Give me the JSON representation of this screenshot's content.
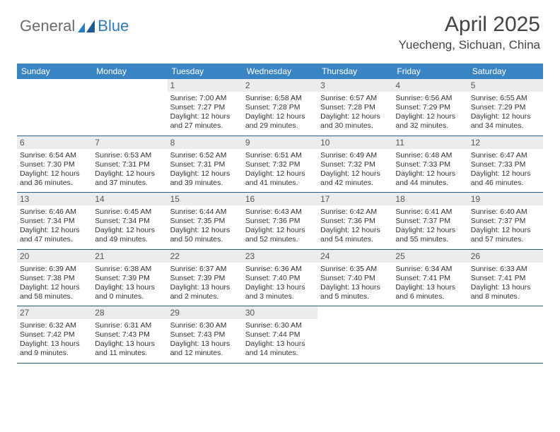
{
  "logo": {
    "text1": "General",
    "text2": "Blue"
  },
  "title": "April 2025",
  "location": "Yuecheng, Sichuan, China",
  "colors": {
    "header_bg": "#3a84c4",
    "header_text": "#ffffff",
    "daynum_bg": "#ececec",
    "week_divider": "#2b5a84",
    "body_text": "#333333",
    "title_text": "#444444"
  },
  "dayHeaders": [
    "Sunday",
    "Monday",
    "Tuesday",
    "Wednesday",
    "Thursday",
    "Friday",
    "Saturday"
  ],
  "weeks": [
    [
      {
        "date": "",
        "sunrise": "",
        "sunset": "",
        "daylight": ""
      },
      {
        "date": "",
        "sunrise": "",
        "sunset": "",
        "daylight": ""
      },
      {
        "date": "1",
        "sunrise": "Sunrise: 7:00 AM",
        "sunset": "Sunset: 7:27 PM",
        "daylight": "Daylight: 12 hours and 27 minutes."
      },
      {
        "date": "2",
        "sunrise": "Sunrise: 6:58 AM",
        "sunset": "Sunset: 7:28 PM",
        "daylight": "Daylight: 12 hours and 29 minutes."
      },
      {
        "date": "3",
        "sunrise": "Sunrise: 6:57 AM",
        "sunset": "Sunset: 7:28 PM",
        "daylight": "Daylight: 12 hours and 30 minutes."
      },
      {
        "date": "4",
        "sunrise": "Sunrise: 6:56 AM",
        "sunset": "Sunset: 7:29 PM",
        "daylight": "Daylight: 12 hours and 32 minutes."
      },
      {
        "date": "5",
        "sunrise": "Sunrise: 6:55 AM",
        "sunset": "Sunset: 7:29 PM",
        "daylight": "Daylight: 12 hours and 34 minutes."
      }
    ],
    [
      {
        "date": "6",
        "sunrise": "Sunrise: 6:54 AM",
        "sunset": "Sunset: 7:30 PM",
        "daylight": "Daylight: 12 hours and 36 minutes."
      },
      {
        "date": "7",
        "sunrise": "Sunrise: 6:53 AM",
        "sunset": "Sunset: 7:31 PM",
        "daylight": "Daylight: 12 hours and 37 minutes."
      },
      {
        "date": "8",
        "sunrise": "Sunrise: 6:52 AM",
        "sunset": "Sunset: 7:31 PM",
        "daylight": "Daylight: 12 hours and 39 minutes."
      },
      {
        "date": "9",
        "sunrise": "Sunrise: 6:51 AM",
        "sunset": "Sunset: 7:32 PM",
        "daylight": "Daylight: 12 hours and 41 minutes."
      },
      {
        "date": "10",
        "sunrise": "Sunrise: 6:49 AM",
        "sunset": "Sunset: 7:32 PM",
        "daylight": "Daylight: 12 hours and 42 minutes."
      },
      {
        "date": "11",
        "sunrise": "Sunrise: 6:48 AM",
        "sunset": "Sunset: 7:33 PM",
        "daylight": "Daylight: 12 hours and 44 minutes."
      },
      {
        "date": "12",
        "sunrise": "Sunrise: 6:47 AM",
        "sunset": "Sunset: 7:33 PM",
        "daylight": "Daylight: 12 hours and 46 minutes."
      }
    ],
    [
      {
        "date": "13",
        "sunrise": "Sunrise: 6:46 AM",
        "sunset": "Sunset: 7:34 PM",
        "daylight": "Daylight: 12 hours and 47 minutes."
      },
      {
        "date": "14",
        "sunrise": "Sunrise: 6:45 AM",
        "sunset": "Sunset: 7:34 PM",
        "daylight": "Daylight: 12 hours and 49 minutes."
      },
      {
        "date": "15",
        "sunrise": "Sunrise: 6:44 AM",
        "sunset": "Sunset: 7:35 PM",
        "daylight": "Daylight: 12 hours and 50 minutes."
      },
      {
        "date": "16",
        "sunrise": "Sunrise: 6:43 AM",
        "sunset": "Sunset: 7:36 PM",
        "daylight": "Daylight: 12 hours and 52 minutes."
      },
      {
        "date": "17",
        "sunrise": "Sunrise: 6:42 AM",
        "sunset": "Sunset: 7:36 PM",
        "daylight": "Daylight: 12 hours and 54 minutes."
      },
      {
        "date": "18",
        "sunrise": "Sunrise: 6:41 AM",
        "sunset": "Sunset: 7:37 PM",
        "daylight": "Daylight: 12 hours and 55 minutes."
      },
      {
        "date": "19",
        "sunrise": "Sunrise: 6:40 AM",
        "sunset": "Sunset: 7:37 PM",
        "daylight": "Daylight: 12 hours and 57 minutes."
      }
    ],
    [
      {
        "date": "20",
        "sunrise": "Sunrise: 6:39 AM",
        "sunset": "Sunset: 7:38 PM",
        "daylight": "Daylight: 12 hours and 58 minutes."
      },
      {
        "date": "21",
        "sunrise": "Sunrise: 6:38 AM",
        "sunset": "Sunset: 7:39 PM",
        "daylight": "Daylight: 13 hours and 0 minutes."
      },
      {
        "date": "22",
        "sunrise": "Sunrise: 6:37 AM",
        "sunset": "Sunset: 7:39 PM",
        "daylight": "Daylight: 13 hours and 2 minutes."
      },
      {
        "date": "23",
        "sunrise": "Sunrise: 6:36 AM",
        "sunset": "Sunset: 7:40 PM",
        "daylight": "Daylight: 13 hours and 3 minutes."
      },
      {
        "date": "24",
        "sunrise": "Sunrise: 6:35 AM",
        "sunset": "Sunset: 7:40 PM",
        "daylight": "Daylight: 13 hours and 5 minutes."
      },
      {
        "date": "25",
        "sunrise": "Sunrise: 6:34 AM",
        "sunset": "Sunset: 7:41 PM",
        "daylight": "Daylight: 13 hours and 6 minutes."
      },
      {
        "date": "26",
        "sunrise": "Sunrise: 6:33 AM",
        "sunset": "Sunset: 7:41 PM",
        "daylight": "Daylight: 13 hours and 8 minutes."
      }
    ],
    [
      {
        "date": "27",
        "sunrise": "Sunrise: 6:32 AM",
        "sunset": "Sunset: 7:42 PM",
        "daylight": "Daylight: 13 hours and 9 minutes."
      },
      {
        "date": "28",
        "sunrise": "Sunrise: 6:31 AM",
        "sunset": "Sunset: 7:43 PM",
        "daylight": "Daylight: 13 hours and 11 minutes."
      },
      {
        "date": "29",
        "sunrise": "Sunrise: 6:30 AM",
        "sunset": "Sunset: 7:43 PM",
        "daylight": "Daylight: 13 hours and 12 minutes."
      },
      {
        "date": "30",
        "sunrise": "Sunrise: 6:30 AM",
        "sunset": "Sunset: 7:44 PM",
        "daylight": "Daylight: 13 hours and 14 minutes."
      },
      {
        "date": "",
        "sunrise": "",
        "sunset": "",
        "daylight": ""
      },
      {
        "date": "",
        "sunrise": "",
        "sunset": "",
        "daylight": ""
      },
      {
        "date": "",
        "sunrise": "",
        "sunset": "",
        "daylight": ""
      }
    ]
  ]
}
